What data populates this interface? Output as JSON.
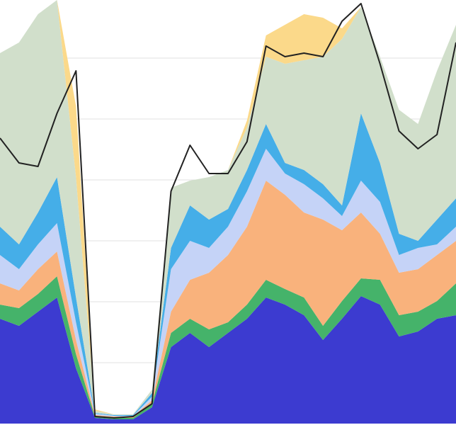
{
  "chart_data": {
    "type": "area",
    "stacked": true,
    "grid": true,
    "grid_color": "#e2e2e2",
    "categories": [
      null,
      null,
      null,
      null,
      null,
      null,
      null,
      null,
      null,
      null,
      null,
      null,
      null,
      null,
      null,
      null,
      null,
      null,
      null,
      null,
      null,
      null,
      null,
      null,
      null
    ],
    "ylim": [
      0,
      598
    ],
    "yticks": [
      86,
      172,
      258,
      344,
      430,
      516
    ],
    "series": [
      {
        "color": "#3c3bd0",
        "values": [
          148,
          138,
          158,
          178,
          78,
          8,
          6,
          6,
          23,
          108,
          128,
          108,
          128,
          148,
          178,
          168,
          153,
          118,
          148,
          180,
          168,
          123,
          130,
          148,
          153
        ]
      },
      {
        "color": "#45b36a",
        "values": [
          20,
          25,
          25,
          30,
          20,
          2,
          2,
          2,
          5,
          20,
          20,
          25,
          15,
          20,
          25,
          22,
          25,
          20,
          25,
          25,
          35,
          30,
          28,
          25,
          45
        ]
      },
      {
        "color": "#f9b27c",
        "values": [
          30,
          25,
          35,
          35,
          20,
          2,
          2,
          2,
          5,
          30,
          55,
          80,
          95,
          110,
          140,
          133,
          120,
          150,
          100,
          93,
          65,
          60,
          60,
          65,
          60
        ]
      },
      {
        "color": "#c5d3f7",
        "values": [
          40,
          30,
          35,
          40,
          25,
          2,
          1,
          1,
          5,
          60,
          55,
          35,
          40,
          50,
          45,
          30,
          40,
          30,
          20,
          45,
          45,
          25,
          30,
          15,
          20
        ]
      },
      {
        "color": "#45aee8",
        "values": [
          40,
          35,
          45,
          65,
          35,
          1,
          1,
          1,
          5,
          30,
          50,
          40,
          25,
          30,
          35,
          15,
          20,
          20,
          15,
          95,
          55,
          30,
          10,
          35,
          40
        ]
      },
      {
        "color": "#d1dfcb",
        "values": [
          245,
          285,
          280,
          250,
          170,
          3,
          1,
          1,
          5,
          85,
          35,
          60,
          55,
          60,
          95,
          140,
          155,
          180,
          235,
          150,
          150,
          175,
          165,
          210,
          245
        ]
      },
      {
        "color": "#fbd98a",
        "values": [
          0,
          0,
          0,
          0,
          100,
          2,
          0,
          0,
          0,
          0,
          0,
          0,
          0,
          10,
          30,
          55,
          65,
          55,
          15,
          0,
          0,
          0,
          0,
          0,
          0
        ]
      },
      {
        "type": "line",
        "color": "#222222",
        "values": [
          403,
          368,
          363,
          438,
          498,
          10,
          8,
          10,
          28,
          328,
          393,
          353,
          353,
          398,
          533,
          518,
          523,
          518,
          568,
          593,
          508,
          413,
          388,
          408,
          538
        ]
      }
    ]
  }
}
